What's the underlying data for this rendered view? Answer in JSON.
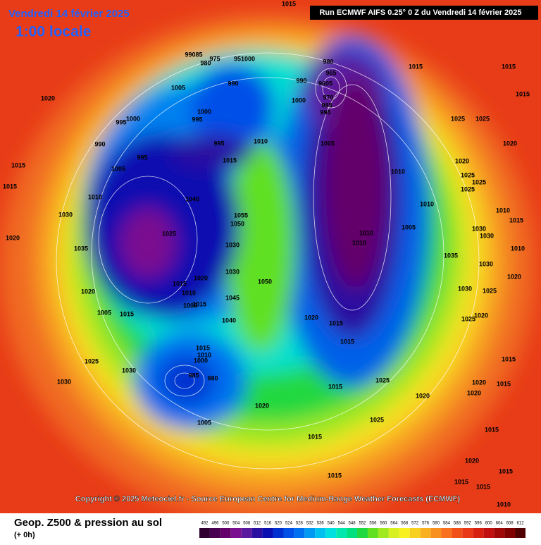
{
  "header": {
    "date": "Vendredi 14 février 2025",
    "time": "1:00 locale",
    "run": "Run ECMWF AIFS 0.25° 0 Z du Vendredi 14 février 2025"
  },
  "copyright": "Copyright © 2025 Meteociel.fr - Source European Centre for Medium-Range Weather Forecasts (ECMWF)",
  "footer": {
    "title": "Geop. Z500 & pression au sol",
    "lead": "(+ 0h)"
  },
  "legend": {
    "steps": [
      {
        "label": "492",
        "color": "#300030"
      },
      {
        "label": "496",
        "color": "#4a0050"
      },
      {
        "label": "500",
        "color": "#64006a"
      },
      {
        "label": "504",
        "color": "#7a1090"
      },
      {
        "label": "508",
        "color": "#5a1aa0"
      },
      {
        "label": "512",
        "color": "#2a10a0"
      },
      {
        "label": "516",
        "color": "#0a10b0"
      },
      {
        "label": "520",
        "color": "#0030d0"
      },
      {
        "label": "524",
        "color": "#0050e8"
      },
      {
        "label": "528",
        "color": "#0070f0"
      },
      {
        "label": "532",
        "color": "#0098f0"
      },
      {
        "label": "536",
        "color": "#00c0f0"
      },
      {
        "label": "540",
        "color": "#00e0e0"
      },
      {
        "label": "544",
        "color": "#00e8b0"
      },
      {
        "label": "548",
        "color": "#00e080"
      },
      {
        "label": "552",
        "color": "#20d840"
      },
      {
        "label": "556",
        "color": "#60e020"
      },
      {
        "label": "560",
        "color": "#a0e820"
      },
      {
        "label": "564",
        "color": "#d8f020"
      },
      {
        "label": "568",
        "color": "#f8f020"
      },
      {
        "label": "572",
        "color": "#f8d020"
      },
      {
        "label": "576",
        "color": "#f8b020"
      },
      {
        "label": "580",
        "color": "#f89020"
      },
      {
        "label": "584",
        "color": "#f87020"
      },
      {
        "label": "588",
        "color": "#f05018"
      },
      {
        "label": "592",
        "color": "#e83818"
      },
      {
        "label": "596",
        "color": "#d82010"
      },
      {
        "label": "600",
        "color": "#c01010"
      },
      {
        "label": "604",
        "color": "#a00808"
      },
      {
        "label": "608",
        "color": "#800000"
      },
      {
        "label": "612",
        "color": "#500000"
      }
    ]
  },
  "isobar_labels": [
    "1015",
    "1020",
    "1015",
    "1015",
    "1020",
    "1030",
    "1035",
    "1020",
    "1005",
    "1015",
    "1010",
    "1005",
    "995",
    "1000",
    "990",
    "995",
    "1000",
    "995",
    "1005",
    "990",
    "975",
    "980",
    "99085",
    "951000",
    "995",
    "1015",
    "1010",
    "1040",
    "1025",
    "1055",
    "1050",
    "1030",
    "1015",
    "1010",
    "1008",
    "1020",
    "1015",
    "1040",
    "1045",
    "1050",
    "1030",
    "980",
    "965",
    "9605",
    "970",
    "985",
    "995",
    "990",
    "1000",
    "1005",
    "1010",
    "1005",
    "1010",
    "1010",
    "1020",
    "1015",
    "1015",
    "1015",
    "1025",
    "1020",
    "1025",
    "1015",
    "1015",
    "1015",
    "1015",
    "1025",
    "1025",
    "1020",
    "1020",
    "1025",
    "1025",
    "1025",
    "1010",
    "1010",
    "1015",
    "1030",
    "1030",
    "1010",
    "1030",
    "1035",
    "1030",
    "1025",
    "1020",
    "1020",
    "1025",
    "1015",
    "1020",
    "1015",
    "1020",
    "1015",
    "1020",
    "1015",
    "1015",
    "1015",
    "1010",
    "1015",
    "1025",
    "1030",
    "1030",
    "1015",
    "1010",
    "1000",
    "985",
    "980",
    "1005",
    "1020"
  ]
}
